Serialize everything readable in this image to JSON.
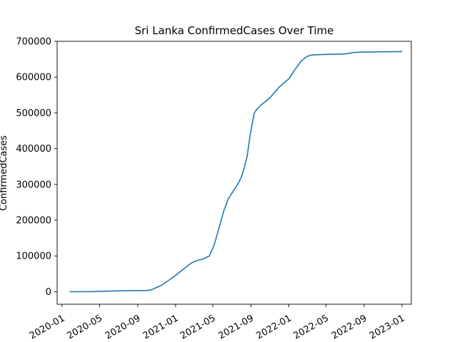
{
  "chart_data": {
    "type": "line",
    "title": "Sri Lanka  ConfirmedCases Over Time",
    "xlabel": "",
    "ylabel": "ConfirmedCases",
    "x_ticks": [
      "2020-01",
      "2020-05",
      "2020-09",
      "2021-01",
      "2021-05",
      "2021-09",
      "2022-01",
      "2022-05",
      "2022-09",
      "2023-01"
    ],
    "y_ticks": [
      0,
      100000,
      200000,
      300000,
      400000,
      500000,
      600000,
      700000
    ],
    "xlim": [
      "2019-12-16",
      "2023-01-31"
    ],
    "ylim": [
      -35000,
      700000
    ],
    "grid": false,
    "legend": "none",
    "line_color": "#1f77b4",
    "series": [
      {
        "x": [
          "2020-01-27",
          "2020-04-01",
          "2020-06-01",
          "2020-08-01",
          "2020-10-01",
          "2020-10-15",
          "2020-11-15",
          "2020-12-15",
          "2021-01-10",
          "2021-02-01",
          "2021-02-20",
          "2021-03-10",
          "2021-04-01",
          "2021-04-20",
          "2021-05-05",
          "2021-05-20",
          "2021-06-05",
          "2021-06-20",
          "2021-07-05",
          "2021-07-20",
          "2021-08-01",
          "2021-08-10",
          "2021-08-20",
          "2021-08-28",
          "2021-09-05",
          "2021-09-12",
          "2021-09-20",
          "2021-10-01",
          "2021-10-15",
          "2021-11-01",
          "2021-11-15",
          "2021-12-01",
          "2021-12-15",
          "2022-01-01",
          "2022-01-20",
          "2022-02-10",
          "2022-03-01",
          "2022-03-15",
          "2022-04-01",
          "2022-05-01",
          "2022-06-01",
          "2022-07-01",
          "2022-08-01",
          "2022-09-01",
          "2022-10-01",
          "2022-11-01",
          "2022-12-01",
          "2022-12-31"
        ],
        "values": [
          1,
          150,
          1700,
          3000,
          3400,
          5500,
          17000,
          35000,
          52000,
          67000,
          80000,
          87000,
          92000,
          100000,
          130000,
          175000,
          225000,
          260000,
          280000,
          300000,
          320000,
          345000,
          380000,
          430000,
          470000,
          500000,
          510000,
          520000,
          530000,
          542000,
          556000,
          572000,
          583000,
          595000,
          620000,
          645000,
          658000,
          661500,
          662500,
          663500,
          664000,
          664800,
          669000,
          670000,
          670300,
          670700,
          671000,
          671300
        ]
      }
    ]
  }
}
